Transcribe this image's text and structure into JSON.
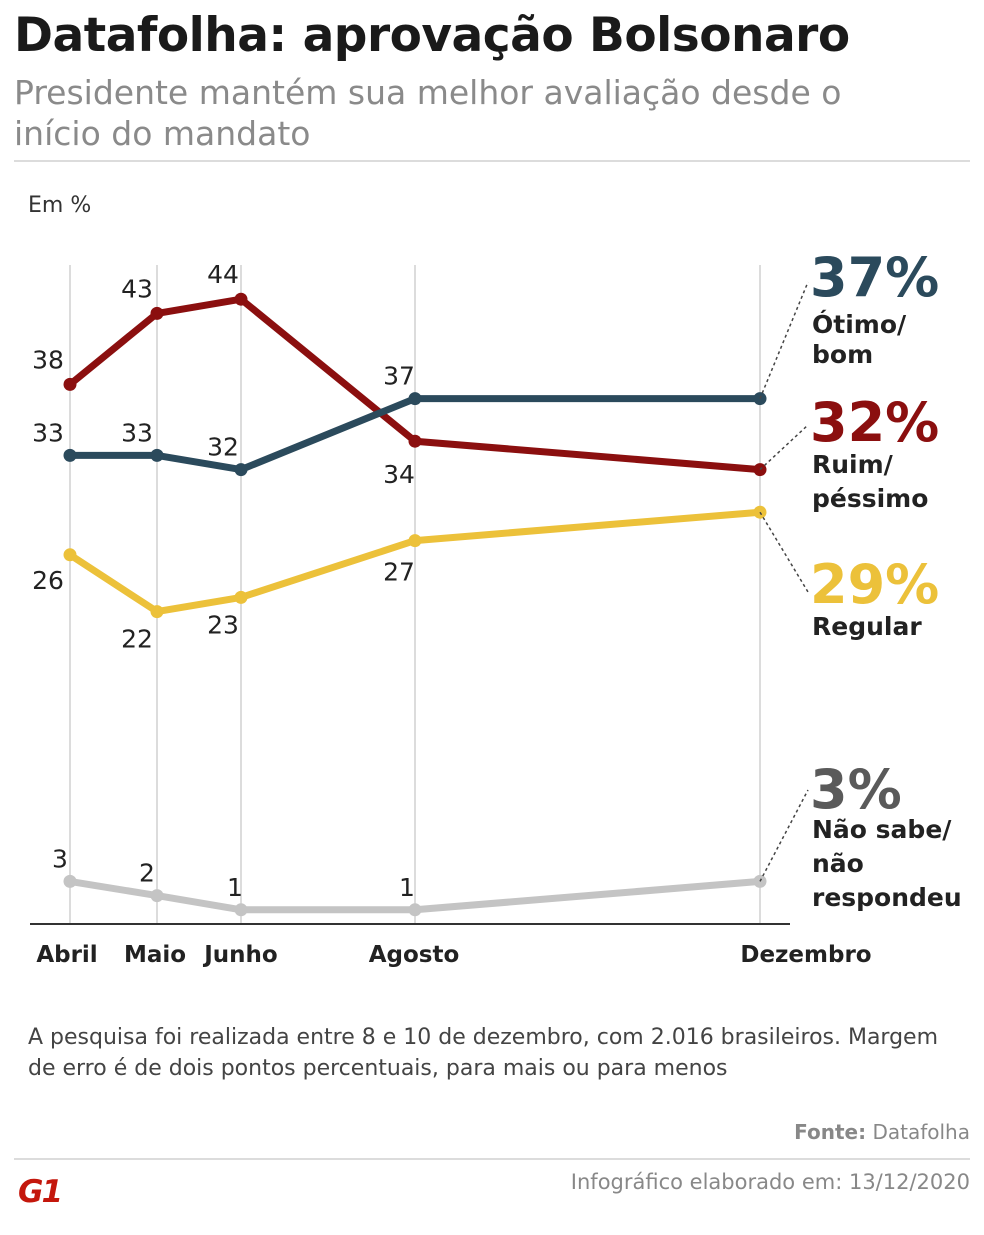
{
  "title": "Datafolha: aprovação Bolsonaro",
  "subtitle": "Presidente mantém sua melhor avaliação desde o início do mandato",
  "chart_data": {
    "type": "line",
    "ylabel": "Em %",
    "categories": [
      "Abril",
      "Maio",
      "Junho",
      "Agosto",
      "Dezembro"
    ],
    "ylim": [
      0,
      50
    ],
    "series": [
      {
        "key": "otimo",
        "name": "Ótimo/ bom",
        "final_label": "37%",
        "color": "#2b4a5c",
        "values": [
          33,
          33,
          32,
          37,
          37
        ],
        "point_labels": [
          "33",
          "33",
          "32",
          "37"
        ]
      },
      {
        "key": "ruim",
        "name": "Ruim/ péssimo",
        "final_label": "32%",
        "color": "#8b0f0f",
        "values": [
          38,
          43,
          44,
          34,
          32
        ],
        "point_labels": [
          "38",
          "43",
          "44",
          "34"
        ]
      },
      {
        "key": "regular",
        "name": "Regular",
        "final_label": "29%",
        "color": "#ecc13a",
        "values": [
          26,
          22,
          23,
          27,
          29
        ],
        "point_labels": [
          "26",
          "22",
          "23",
          "27"
        ]
      },
      {
        "key": "ns",
        "name": "Não sabe/ não respondeu",
        "final_label": "3%",
        "color": "#c4c4c4",
        "values": [
          3,
          2,
          1,
          1,
          3
        ],
        "point_labels": [
          "3",
          "2",
          "1",
          "1"
        ]
      }
    ]
  },
  "note": "A pesquisa foi realizada entre 8 e 10 de dezembro, com 2.016 brasileiros. Margem de erro é de dois pontos percentuais, para mais ou para menos",
  "source": {
    "label": "Fonte:",
    "value": "Datafolha"
  },
  "credit": "Infográfico elaborado em: 13/12/2020",
  "logo": "G1"
}
